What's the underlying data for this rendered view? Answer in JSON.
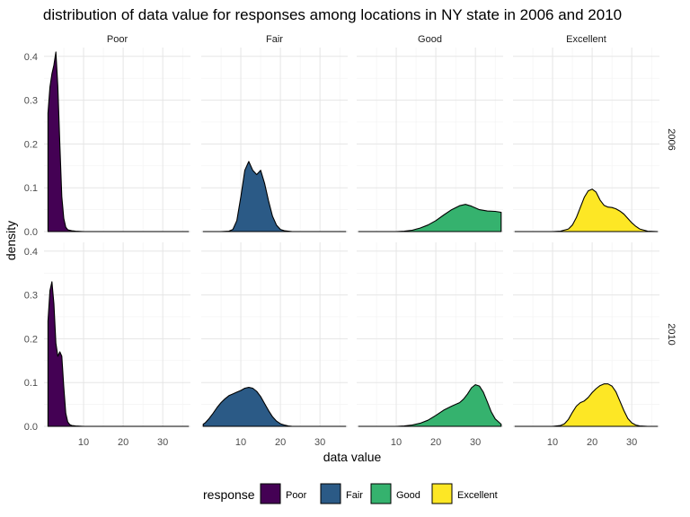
{
  "chart_data": {
    "type": "area",
    "title": "distribution of data value for responses among locations in NY state in 2006 and 2010",
    "xlabel": "data value",
    "ylabel": "density",
    "facet_columns": [
      "Poor",
      "Fair",
      "Good",
      "Excellent"
    ],
    "facet_rows": [
      "2006",
      "2010"
    ],
    "xlim": [
      0,
      37
    ],
    "ylim": [
      0,
      0.42
    ],
    "x_ticks": [
      10,
      20,
      30
    ],
    "y_ticks": [
      0.0,
      0.1,
      0.2,
      0.3,
      0.4
    ],
    "y_tick_labels": [
      "0.0",
      "0.1",
      "0.2",
      "0.3",
      "0.4"
    ],
    "grid": true,
    "legend": {
      "title": "response",
      "position": "bottom",
      "entries": [
        {
          "label": "Poor",
          "color": "#440154"
        },
        {
          "label": "Fair",
          "color": "#2b5a86"
        },
        {
          "label": "Good",
          "color": "#35b26e"
        },
        {
          "label": "Excellent",
          "color": "#fde725"
        }
      ]
    },
    "panels": [
      {
        "row": "2006",
        "col": "Poor",
        "color": "#440154",
        "x": [
          1.0,
          1.5,
          2.0,
          2.5,
          3.0,
          3.5,
          4.0,
          4.5,
          5.0,
          5.5,
          6.0,
          7.0,
          8.0,
          10.0,
          15.0,
          20.0,
          25.0,
          30.0,
          35.0,
          36.5
        ],
        "y": [
          0.27,
          0.33,
          0.36,
          0.38,
          0.41,
          0.33,
          0.2,
          0.08,
          0.03,
          0.01,
          0.004,
          0.002,
          0.001,
          0.0,
          0.0,
          0.0,
          0.0,
          0.0,
          0.0,
          0.0
        ]
      },
      {
        "row": "2006",
        "col": "Fair",
        "color": "#2b5a86",
        "x": [
          0.5,
          5.0,
          7.0,
          8.0,
          9.0,
          10.0,
          11.0,
          12.0,
          13.0,
          14.0,
          15.0,
          16.0,
          17.0,
          18.0,
          19.0,
          20.0,
          21.0,
          22.0,
          23.0,
          25.0,
          30.0,
          36.5
        ],
        "y": [
          0.0,
          0.0,
          0.001,
          0.005,
          0.025,
          0.08,
          0.14,
          0.16,
          0.14,
          0.13,
          0.14,
          0.11,
          0.07,
          0.035,
          0.015,
          0.005,
          0.002,
          0.001,
          0.0,
          0.0,
          0.0,
          0.0
        ]
      },
      {
        "row": "2006",
        "col": "Good",
        "color": "#35b26e",
        "x": [
          0.5,
          10.0,
          12.0,
          14.0,
          16.0,
          18.0,
          20.0,
          22.0,
          24.0,
          26.0,
          27.5,
          29.0,
          31.0,
          33.0,
          35.0,
          36.5
        ],
        "y": [
          0.0,
          0.0,
          0.001,
          0.003,
          0.008,
          0.015,
          0.025,
          0.038,
          0.05,
          0.059,
          0.062,
          0.058,
          0.05,
          0.047,
          0.046,
          0.044
        ]
      },
      {
        "row": "2006",
        "col": "Excellent",
        "color": "#fde725",
        "x": [
          0.5,
          10.0,
          12.0,
          14.0,
          15.0,
          16.0,
          17.0,
          18.0,
          19.0,
          20.0,
          21.0,
          22.0,
          23.0,
          24.0,
          25.0,
          26.0,
          27.0,
          28.0,
          29.0,
          30.0,
          31.0,
          32.0,
          34.0,
          36.5
        ],
        "y": [
          0.0,
          0.0,
          0.001,
          0.006,
          0.015,
          0.032,
          0.055,
          0.078,
          0.093,
          0.097,
          0.09,
          0.072,
          0.06,
          0.056,
          0.055,
          0.052,
          0.047,
          0.04,
          0.03,
          0.02,
          0.012,
          0.006,
          0.001,
          0.0
        ]
      },
      {
        "row": "2010",
        "col": "Poor",
        "color": "#440154",
        "x": [
          1.0,
          1.5,
          2.0,
          2.5,
          3.0,
          3.5,
          4.0,
          4.5,
          5.0,
          5.5,
          6.0,
          6.5,
          7.0,
          8.0,
          10.0,
          15.0,
          20.0,
          25.0,
          30.0,
          35.0,
          36.5
        ],
        "y": [
          0.24,
          0.31,
          0.33,
          0.28,
          0.19,
          0.16,
          0.17,
          0.16,
          0.09,
          0.03,
          0.01,
          0.004,
          0.002,
          0.001,
          0.0,
          0.0,
          0.0,
          0.0,
          0.0,
          0.0,
          0.0
        ]
      },
      {
        "row": "2010",
        "col": "Fair",
        "color": "#2b5a86",
        "x": [
          0.5,
          1.0,
          2.0,
          3.0,
          4.0,
          5.0,
          6.0,
          7.0,
          8.0,
          9.0,
          10.0,
          11.0,
          12.0,
          13.0,
          14.0,
          15.0,
          16.0,
          17.0,
          18.0,
          19.0,
          20.0,
          21.0,
          22.0,
          23.0,
          25.0,
          30.0,
          36.5
        ],
        "y": [
          0.005,
          0.008,
          0.018,
          0.03,
          0.043,
          0.054,
          0.063,
          0.07,
          0.074,
          0.078,
          0.082,
          0.087,
          0.089,
          0.087,
          0.08,
          0.068,
          0.052,
          0.036,
          0.022,
          0.012,
          0.006,
          0.003,
          0.001,
          0.0,
          0.0,
          0.0,
          0.0
        ]
      },
      {
        "row": "2010",
        "col": "Good",
        "color": "#35b26e",
        "x": [
          0.5,
          10.0,
          12.0,
          14.0,
          16.0,
          18.0,
          20.0,
          22.0,
          24.0,
          26.0,
          27.0,
          28.0,
          29.0,
          30.0,
          31.0,
          32.0,
          33.0,
          34.0,
          35.0,
          36.5
        ],
        "y": [
          0.0,
          0.0,
          0.001,
          0.003,
          0.007,
          0.014,
          0.025,
          0.037,
          0.046,
          0.054,
          0.062,
          0.074,
          0.088,
          0.095,
          0.092,
          0.078,
          0.056,
          0.033,
          0.017,
          0.005
        ]
      },
      {
        "row": "2010",
        "col": "Excellent",
        "color": "#fde725",
        "x": [
          0.5,
          10.0,
          12.0,
          13.0,
          14.0,
          15.0,
          16.0,
          17.0,
          18.0,
          19.0,
          20.0,
          21.0,
          22.0,
          23.0,
          24.0,
          25.0,
          26.0,
          27.0,
          28.0,
          29.0,
          30.0,
          31.0,
          32.0,
          34.0,
          36.5
        ],
        "y": [
          0.0,
          0.0,
          0.002,
          0.006,
          0.016,
          0.032,
          0.046,
          0.054,
          0.058,
          0.066,
          0.077,
          0.086,
          0.093,
          0.097,
          0.097,
          0.092,
          0.079,
          0.058,
          0.036,
          0.018,
          0.008,
          0.003,
          0.001,
          0.0,
          0.0
        ]
      }
    ]
  }
}
